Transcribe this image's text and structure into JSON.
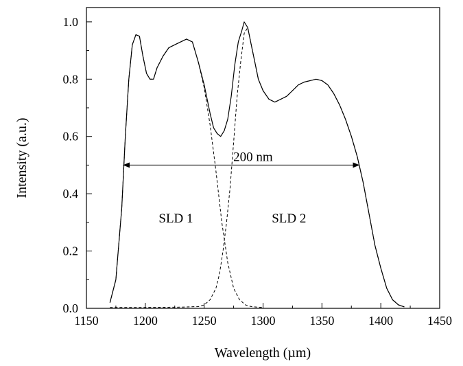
{
  "chart_data": {
    "type": "line",
    "title": "",
    "xlabel": "Wavelength (µm)",
    "ylabel": "Intensity (a.u.)",
    "xlim": [
      1150,
      1450
    ],
    "ylim": [
      0.0,
      1.05
    ],
    "x_ticks": [
      "1150",
      "1200",
      "1250",
      "1300",
      "1350",
      "1400",
      "1450"
    ],
    "y_ticks": [
      "0.0",
      "0.2",
      "0.4",
      "0.6",
      "0.8",
      "1.0"
    ],
    "grid": false,
    "series": [
      {
        "style": "solid",
        "x": [
          1170,
          1175,
          1180,
          1183,
          1186,
          1189,
          1192,
          1195,
          1198,
          1201,
          1204,
          1207,
          1210,
          1215,
          1220,
          1225,
          1230,
          1235,
          1240,
          1245,
          1250,
          1255,
          1258,
          1261,
          1264,
          1267,
          1270,
          1273,
          1276,
          1279,
          1282,
          1284,
          1287,
          1290,
          1293,
          1296,
          1300,
          1305,
          1310,
          1315,
          1320,
          1325,
          1330,
          1335,
          1340,
          1345,
          1350,
          1355,
          1360,
          1365,
          1370,
          1375,
          1380,
          1385,
          1390,
          1395,
          1400,
          1405,
          1410,
          1415,
          1420
        ],
        "y": [
          0.02,
          0.1,
          0.35,
          0.6,
          0.8,
          0.92,
          0.955,
          0.95,
          0.88,
          0.82,
          0.8,
          0.8,
          0.84,
          0.88,
          0.91,
          0.92,
          0.93,
          0.94,
          0.93,
          0.86,
          0.78,
          0.68,
          0.63,
          0.61,
          0.6,
          0.62,
          0.66,
          0.74,
          0.85,
          0.93,
          0.97,
          1.0,
          0.98,
          0.92,
          0.86,
          0.8,
          0.76,
          0.73,
          0.72,
          0.73,
          0.74,
          0.76,
          0.78,
          0.79,
          0.795,
          0.8,
          0.795,
          0.78,
          0.75,
          0.71,
          0.66,
          0.6,
          0.53,
          0.44,
          0.33,
          0.22,
          0.14,
          0.07,
          0.03,
          0.012,
          0.005
        ]
      },
      {
        "style": "dashed",
        "x": [
          1170,
          1175,
          1180,
          1183,
          1186,
          1189,
          1192,
          1195,
          1198,
          1201,
          1204,
          1207,
          1210,
          1215,
          1220,
          1225,
          1230,
          1235,
          1240,
          1245,
          1250,
          1255,
          1260,
          1265,
          1270,
          1275,
          1280,
          1285,
          1290,
          1295,
          1300
        ],
        "y": [
          0.02,
          0.1,
          0.35,
          0.6,
          0.8,
          0.92,
          0.955,
          0.95,
          0.88,
          0.82,
          0.8,
          0.8,
          0.84,
          0.88,
          0.91,
          0.92,
          0.93,
          0.94,
          0.93,
          0.86,
          0.77,
          0.64,
          0.48,
          0.3,
          0.16,
          0.07,
          0.03,
          0.012,
          0.006,
          0.004,
          0.003
        ]
      },
      {
        "style": "dashed",
        "x": [
          1170,
          1200,
          1230,
          1245,
          1250,
          1255,
          1260,
          1263,
          1266,
          1269,
          1272,
          1275,
          1278,
          1281,
          1284,
          1287,
          1290,
          1293,
          1296,
          1300,
          1305,
          1310,
          1315,
          1320,
          1325,
          1330,
          1335,
          1340,
          1345,
          1350,
          1355,
          1360,
          1365,
          1370,
          1375,
          1380,
          1385,
          1390,
          1395,
          1400,
          1405,
          1410,
          1415,
          1420
        ],
        "y": [
          0.003,
          0.003,
          0.004,
          0.006,
          0.012,
          0.03,
          0.07,
          0.12,
          0.2,
          0.3,
          0.42,
          0.58,
          0.74,
          0.86,
          0.96,
          0.98,
          0.92,
          0.86,
          0.8,
          0.76,
          0.73,
          0.72,
          0.73,
          0.74,
          0.76,
          0.78,
          0.79,
          0.795,
          0.8,
          0.795,
          0.78,
          0.75,
          0.71,
          0.66,
          0.6,
          0.53,
          0.44,
          0.33,
          0.22,
          0.14,
          0.07,
          0.03,
          0.012,
          0.005
        ]
      }
    ],
    "annotations": {
      "bandwidth": {
        "text": "200 nm",
        "x_start": 1181,
        "x_end": 1382,
        "y": 0.5
      },
      "sld1": {
        "text": "SLD 1",
        "x": 1226,
        "y": 0.3
      },
      "sld2": {
        "text": "SLD 2",
        "x": 1322,
        "y": 0.3
      }
    }
  }
}
